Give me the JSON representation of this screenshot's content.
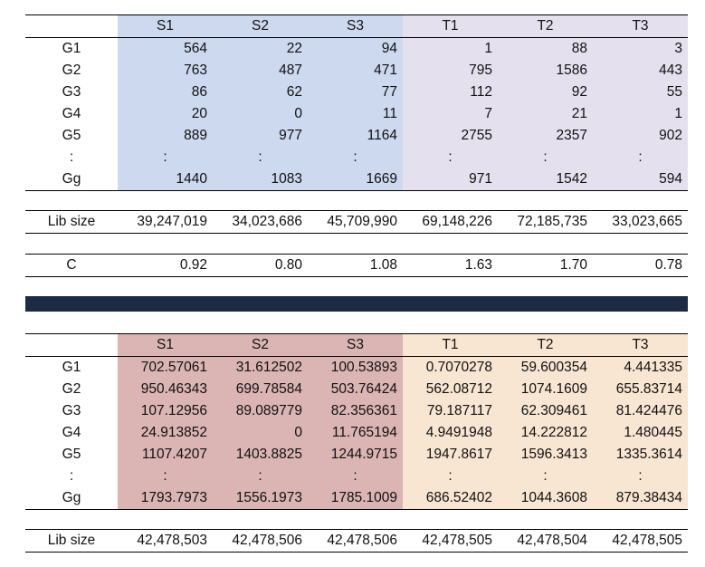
{
  "top_table": {
    "columns": [
      "S1",
      "S2",
      "S3",
      "T1",
      "T2",
      "T3"
    ],
    "rows": [
      {
        "label": "G1",
        "values": [
          "564",
          "22",
          "94",
          "1",
          "88",
          "3"
        ]
      },
      {
        "label": "G2",
        "values": [
          "763",
          "487",
          "471",
          "795",
          "1586",
          "443"
        ]
      },
      {
        "label": "G3",
        "values": [
          "86",
          "62",
          "77",
          "112",
          "92",
          "55"
        ]
      },
      {
        "label": "G4",
        "values": [
          "20",
          "0",
          "11",
          "7",
          "21",
          "1"
        ]
      },
      {
        "label": "G5",
        "values": [
          "889",
          "977",
          "1164",
          "2755",
          "2357",
          "902"
        ]
      },
      {
        "label": ":",
        "values": [
          ":",
          ":",
          ":",
          ":",
          ":",
          ":"
        ]
      },
      {
        "label": "Gg",
        "values": [
          "1440",
          "1083",
          "1669",
          "971",
          "1542",
          "594"
        ]
      }
    ],
    "lib_size": {
      "label": "Lib size",
      "values": [
        "39,247,019",
        "34,023,686",
        "45,709,990",
        "69,148,226",
        "72,185,735",
        "33,023,665"
      ]
    },
    "c_row": {
      "label": "C",
      "values": [
        "0.92",
        "0.80",
        "1.08",
        "1.63",
        "1.70",
        "0.78"
      ]
    }
  },
  "bottom_table": {
    "columns": [
      "S1",
      "S2",
      "S3",
      "T1",
      "T2",
      "T3"
    ],
    "rows": [
      {
        "label": "G1",
        "values": [
          "702.57061",
          "31.612502",
          "100.53893",
          "0.7070278",
          "59.600354",
          "4.441335"
        ]
      },
      {
        "label": "G2",
        "values": [
          "950.46343",
          "699.78584",
          "503.76424",
          "562.08712",
          "1074.1609",
          "655.83714"
        ]
      },
      {
        "label": "G3",
        "values": [
          "107.12956",
          "89.089779",
          "82.356361",
          "79.187117",
          "62.309461",
          "81.424476"
        ]
      },
      {
        "label": "G4",
        "values": [
          "24.913852",
          "0",
          "11.765194",
          "4.9491948",
          "14.222812",
          "1.480445"
        ]
      },
      {
        "label": "G5",
        "values": [
          "1107.4207",
          "1403.8825",
          "1244.9715",
          "1947.8617",
          "1596.3413",
          "1335.3614"
        ]
      },
      {
        "label": ":",
        "values": [
          ":",
          ":",
          ":",
          ":",
          ":",
          ":"
        ]
      },
      {
        "label": "Gg",
        "values": [
          "1793.7973",
          "1556.1973",
          "1785.1009",
          "686.52402",
          "1044.3608",
          "879.38434"
        ]
      }
    ],
    "lib_size": {
      "label": "Lib size",
      "values": [
        "42,478,503",
        "42,478,506",
        "42,478,506",
        "42,478,505",
        "42,478,504",
        "42,478,505"
      ]
    }
  },
  "colors": {
    "top_s": "#cdd9ef",
    "top_t": "#e5e0ee",
    "bottom_s": "#dbb4b4",
    "bottom_t": "#f8e5d2",
    "divider": "#1d2a44"
  }
}
